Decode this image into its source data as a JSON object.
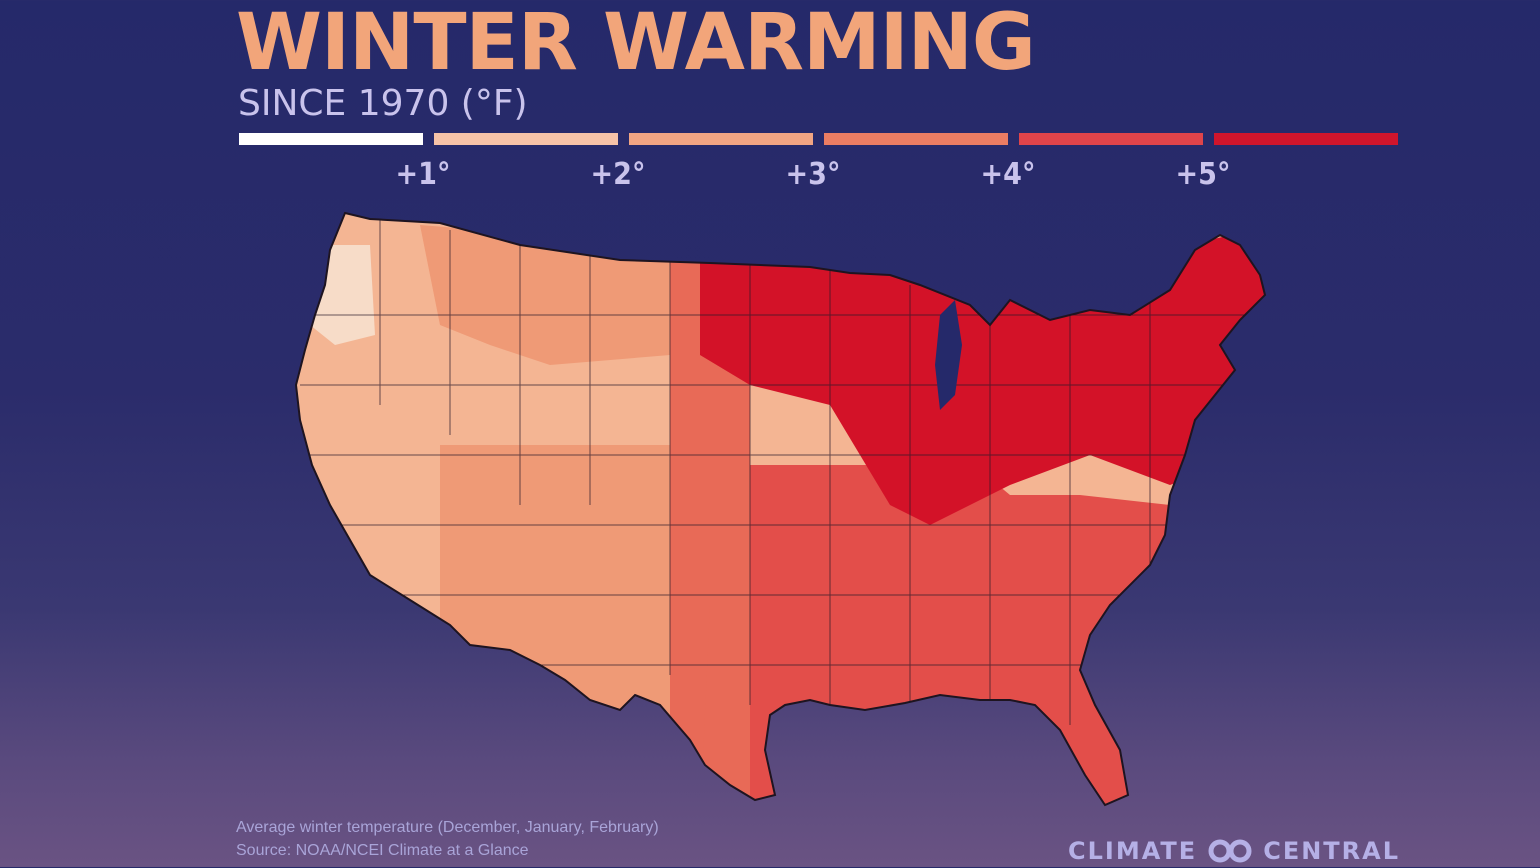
{
  "title": "WINTER WARMING",
  "subtitle": "SINCE 1970 (°F)",
  "legend": {
    "colors": [
      "#ffffff",
      "#f6c3a8",
      "#f1a583",
      "#eb7d63",
      "#e0444a",
      "#d0152c"
    ],
    "labels": [
      "+1°",
      "+2°",
      "+3°",
      "+4°",
      "+5°"
    ]
  },
  "map": {
    "region_colors": {
      "northwest_coast": "#f7dcc8",
      "west": "#f4b593",
      "southwest": "#ef9a76",
      "plains": "#e86a57",
      "south": "#e34e4a",
      "midwest_northeast": "#d31228"
    }
  },
  "caption": {
    "line1": "Average winter temperature (December, January, February)",
    "line2": "Source: NOAA/NCEI Climate at a Glance"
  },
  "brand": {
    "left": "CLIMATE",
    "right": "CENTRAL"
  }
}
